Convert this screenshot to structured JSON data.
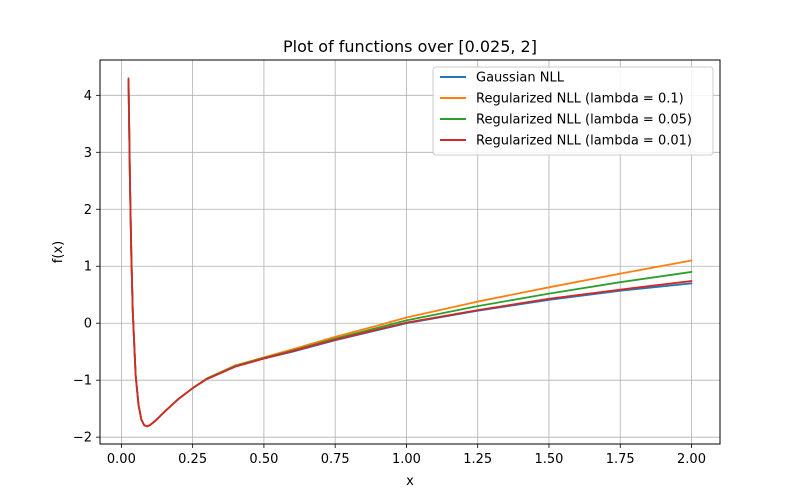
{
  "chart_data": {
    "type": "line",
    "title": "Plot of functions over [0.025, 2]",
    "xlabel": "x",
    "ylabel": "f(x)",
    "xlim": [
      -0.075,
      2.1
    ],
    "ylim": [
      -2.12,
      4.62
    ],
    "x_ticks": [
      0.0,
      0.25,
      0.5,
      0.75,
      1.0,
      1.25,
      1.5,
      1.75,
      2.0
    ],
    "x_tick_labels": [
      "0.00",
      "0.25",
      "0.50",
      "0.75",
      "1.00",
      "1.25",
      "1.50",
      "1.75",
      "2.00"
    ],
    "y_ticks": [
      -2,
      -1,
      0,
      1,
      2,
      3,
      4
    ],
    "y_tick_labels": [
      "−2",
      "−1",
      "0",
      "1",
      "2",
      "3",
      "4"
    ],
    "grid": true,
    "legend_position": "top-right",
    "x": [
      0.025,
      0.03,
      0.035,
      0.04,
      0.05,
      0.06,
      0.07,
      0.08,
      0.09,
      0.1,
      0.12,
      0.15,
      0.2,
      0.25,
      0.3,
      0.4,
      0.5,
      0.6,
      0.75,
      0.9,
      1.0,
      1.25,
      1.5,
      1.75,
      2.0
    ],
    "series": [
      {
        "name": "Gaussian NLL",
        "color": "#1f77b4",
        "values": [
          4.26,
          2.5,
          1.16,
          0.2,
          -0.91,
          -1.43,
          -1.69,
          -1.79,
          -1.81,
          -1.79,
          -1.71,
          -1.56,
          -1.33,
          -1.14,
          -0.98,
          -0.76,
          -0.62,
          -0.5,
          -0.3,
          -0.12,
          0.0,
          0.22,
          0.41,
          0.57,
          0.7
        ]
      },
      {
        "name": "Regularized NLL (lambda = 0.1)",
        "color": "#ff7f0e",
        "values": [
          4.26,
          2.5,
          1.16,
          0.2,
          -0.91,
          -1.43,
          -1.69,
          -1.79,
          -1.81,
          -1.79,
          -1.71,
          -1.56,
          -1.33,
          -1.14,
          -0.97,
          -0.74,
          -0.6,
          -0.46,
          -0.24,
          -0.04,
          0.1,
          0.38,
          0.63,
          0.87,
          1.1
        ]
      },
      {
        "name": "Regularized NLL (lambda = 0.05)",
        "color": "#2ca02c",
        "values": [
          4.26,
          2.5,
          1.16,
          0.2,
          -0.91,
          -1.43,
          -1.69,
          -1.79,
          -1.81,
          -1.79,
          -1.71,
          -1.56,
          -1.33,
          -1.14,
          -0.97,
          -0.75,
          -0.61,
          -0.48,
          -0.27,
          -0.08,
          0.05,
          0.3,
          0.52,
          0.72,
          0.9
        ]
      },
      {
        "name": "Regularized NLL (lambda = 0.01)",
        "color": "#d62728",
        "values": [
          4.3,
          2.52,
          1.17,
          0.21,
          -0.91,
          -1.43,
          -1.69,
          -1.79,
          -1.81,
          -1.79,
          -1.71,
          -1.56,
          -1.33,
          -1.14,
          -0.98,
          -0.76,
          -0.62,
          -0.49,
          -0.29,
          -0.11,
          0.01,
          0.23,
          0.43,
          0.59,
          0.74
        ]
      }
    ]
  }
}
